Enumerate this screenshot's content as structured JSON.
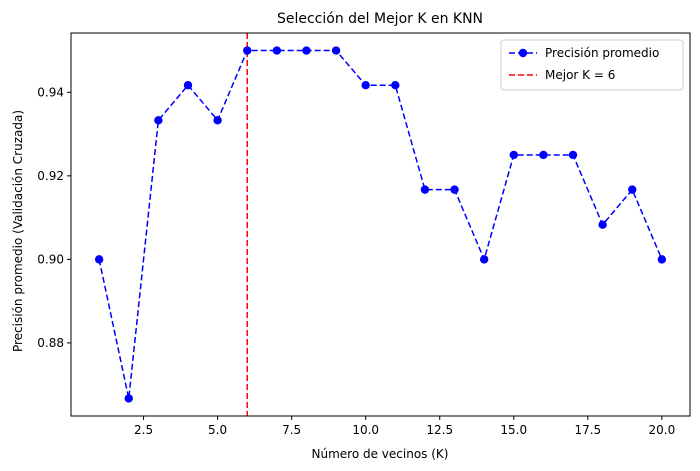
{
  "chart_data": {
    "type": "line",
    "title": "Selección del Mejor K en KNN",
    "xlabel": "Número de vecinos (K)",
    "ylabel": "Precisión promedio (Validación Cruzada)",
    "xlim": [
      0.05,
      20.95
    ],
    "ylim": [
      0.8625,
      0.9542
    ],
    "x_ticks": [
      2.5,
      5.0,
      7.5,
      10.0,
      12.5,
      15.0,
      17.5,
      20.0
    ],
    "x_tick_labels": [
      "2.5",
      "5.0",
      "7.5",
      "10.0",
      "12.5",
      "15.0",
      "17.5",
      "20.0"
    ],
    "y_ticks": [
      0.88,
      0.9,
      0.92,
      0.94
    ],
    "y_tick_labels": [
      "0.88",
      "0.90",
      "0.92",
      "0.94"
    ],
    "grid": false,
    "legend_position": "top-right",
    "series": [
      {
        "name": "Precisión promedio",
        "color": "#0000ff",
        "style": "dashed-line-with-circle-markers",
        "x": [
          1,
          2,
          3,
          4,
          5,
          6,
          7,
          8,
          9,
          10,
          11,
          12,
          13,
          14,
          15,
          16,
          17,
          18,
          19,
          20
        ],
        "y": [
          0.9,
          0.8667,
          0.9333,
          0.9417,
          0.9333,
          0.95,
          0.95,
          0.95,
          0.95,
          0.9417,
          0.9417,
          0.9167,
          0.9167,
          0.9,
          0.925,
          0.925,
          0.925,
          0.9083,
          0.9167,
          0.9
        ]
      }
    ],
    "reference_lines": [
      {
        "name": "Mejor K = 6",
        "orientation": "vertical",
        "x": 6,
        "color": "#ff0000",
        "style": "dashed"
      }
    ]
  }
}
